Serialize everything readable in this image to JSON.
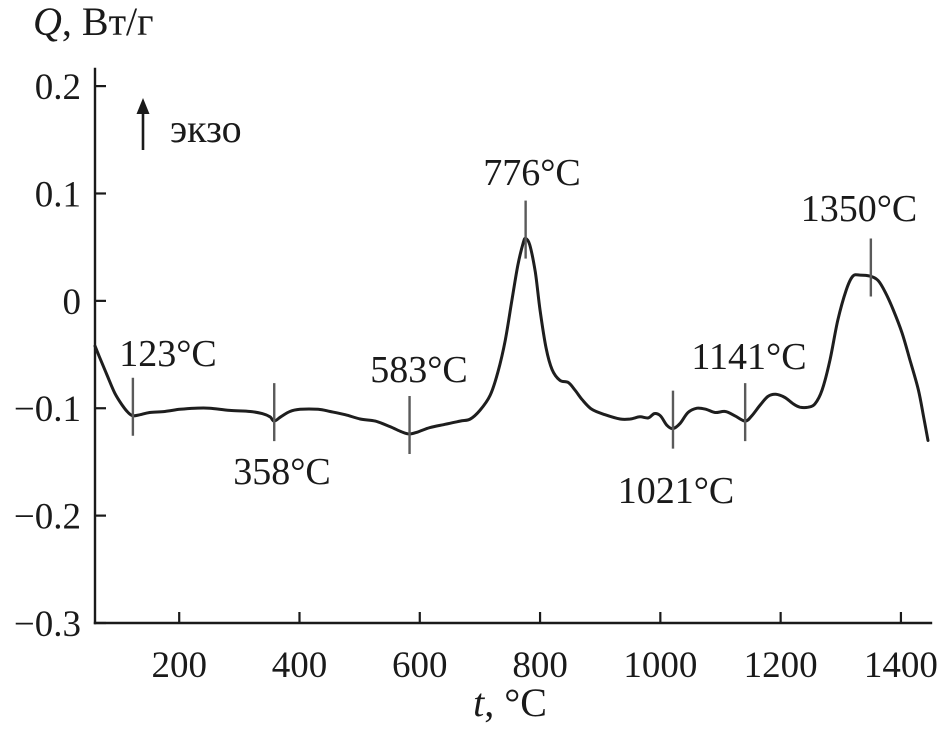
{
  "chart_data": {
    "type": "line",
    "xlabel": {
      "symbol": "t",
      "rest": ", °C"
    },
    "ylabel": {
      "symbol": "Q",
      "rest": ", Вт/г"
    },
    "xlim": [
      60,
      1450
    ],
    "ylim": [
      -0.3,
      0.215
    ],
    "xticks": [
      200,
      400,
      600,
      800,
      1000,
      1200,
      1400
    ],
    "xtick_labels": [
      "200",
      "400",
      "600",
      "800",
      "1000",
      "1200",
      "1400"
    ],
    "yticks": [
      0.2,
      0.1,
      0,
      -0.1,
      -0.2,
      -0.3
    ],
    "ytick_labels": [
      "0.2",
      "0.1",
      "0",
      "−0.1",
      "−0.2",
      "−0.3"
    ],
    "grid": false,
    "series": [
      {
        "x": [
          60,
          68,
          80,
          93,
          105,
          115,
          123,
          135,
          151,
          176,
          201,
          226,
          251,
          284,
          318,
          338,
          351,
          358,
          369,
          384,
          401,
          431,
          451,
          476,
          501,
          526,
          550,
          570,
          583,
          597,
          617,
          642,
          667,
          684,
          700,
          717,
          730,
          742,
          753,
          763,
          772,
          776,
          783,
          792,
          800,
          810,
          820,
          833,
          847,
          858,
          870,
          886,
          908,
          933,
          950,
          966,
          980,
          990,
          1000,
          1011,
          1021,
          1033,
          1046,
          1061,
          1076,
          1091,
          1108,
          1124,
          1141,
          1152,
          1166,
          1179,
          1192,
          1207,
          1221,
          1232,
          1246,
          1257,
          1269,
          1282,
          1295,
          1309,
          1320,
          1332,
          1349,
          1362,
          1374,
          1387,
          1402,
          1415,
          1429,
          1438,
          1445
        ],
        "y": [
          -0.042,
          -0.053,
          -0.069,
          -0.086,
          -0.097,
          -0.104,
          -0.107,
          -0.106,
          -0.104,
          -0.103,
          -0.101,
          -0.1,
          -0.1,
          -0.102,
          -0.103,
          -0.105,
          -0.108,
          -0.112,
          -0.108,
          -0.103,
          -0.101,
          -0.101,
          -0.103,
          -0.106,
          -0.11,
          -0.112,
          -0.117,
          -0.122,
          -0.124,
          -0.122,
          -0.118,
          -0.115,
          -0.112,
          -0.11,
          -0.102,
          -0.088,
          -0.066,
          -0.037,
          0.0,
          0.033,
          0.054,
          0.058,
          0.052,
          0.027,
          -0.009,
          -0.044,
          -0.064,
          -0.074,
          -0.076,
          -0.083,
          -0.092,
          -0.101,
          -0.106,
          -0.11,
          -0.11,
          -0.108,
          -0.109,
          -0.105,
          -0.107,
          -0.116,
          -0.119,
          -0.114,
          -0.104,
          -0.1,
          -0.101,
          -0.104,
          -0.103,
          -0.107,
          -0.112,
          -0.107,
          -0.097,
          -0.089,
          -0.087,
          -0.09,
          -0.096,
          -0.099,
          -0.099,
          -0.096,
          -0.083,
          -0.055,
          -0.018,
          0.01,
          0.023,
          0.024,
          0.023,
          0.019,
          0.008,
          -0.008,
          -0.03,
          -0.055,
          -0.083,
          -0.109,
          -0.13
        ]
      }
    ],
    "annotations": [
      {
        "t": 123,
        "label": "123°C"
      },
      {
        "t": 358,
        "label": "358°C"
      },
      {
        "t": 583,
        "label": "583°C"
      },
      {
        "t": 776,
        "label": "776°C"
      },
      {
        "t": 1021,
        "label": "1021°C"
      },
      {
        "t": 1141,
        "label": "1141°C"
      },
      {
        "t": 1350,
        "label": "1350°C"
      }
    ],
    "direction_indicator": {
      "icon": "arrow-up-icon",
      "label": "экзо"
    },
    "colors": {
      "curve": "#1e1e1e",
      "markers": "#5a5a5a"
    }
  }
}
